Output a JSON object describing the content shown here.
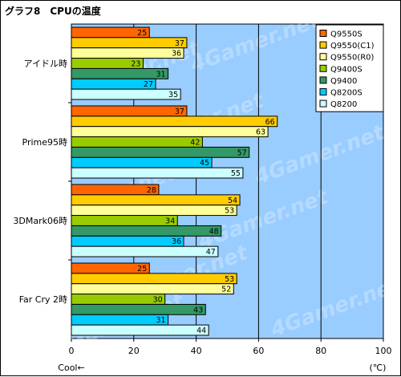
{
  "chart_data": {
    "type": "bar",
    "orientation": "horizontal",
    "title": "グラフ8　CPUの温度",
    "categories": [
      "アイドル時",
      "Prime95時",
      "3DMark06時",
      "Far Cry 2時"
    ],
    "series": [
      {
        "name": "Q9550S",
        "color": "#ff6600",
        "values": [
          25,
          37,
          28,
          25
        ]
      },
      {
        "name": "Q9550(C1)",
        "color": "#ffcc00",
        "values": [
          37,
          66,
          54,
          53
        ]
      },
      {
        "name": "Q9550(R0)",
        "color": "#ffff99",
        "values": [
          36,
          63,
          53,
          52
        ]
      },
      {
        "name": "Q9400S",
        "color": "#99cc00",
        "values": [
          23,
          42,
          34,
          30
        ]
      },
      {
        "name": "Q9400",
        "color": "#339966",
        "values": [
          31,
          57,
          48,
          43
        ]
      },
      {
        "name": "Q8200S",
        "color": "#00ccff",
        "values": [
          27,
          45,
          36,
          31
        ]
      },
      {
        "name": "Q8200",
        "color": "#ccffff",
        "values": [
          35,
          55,
          47,
          44
        ]
      }
    ],
    "xlim": [
      0,
      100
    ],
    "xticks": [
      0,
      20,
      40,
      60,
      80,
      100
    ],
    "xunit": "(℃)",
    "xnote": "Cool←",
    "plot_background": "#99ccff",
    "grid": true,
    "legend_position": "top-right",
    "watermark": "4Gamer.net"
  }
}
